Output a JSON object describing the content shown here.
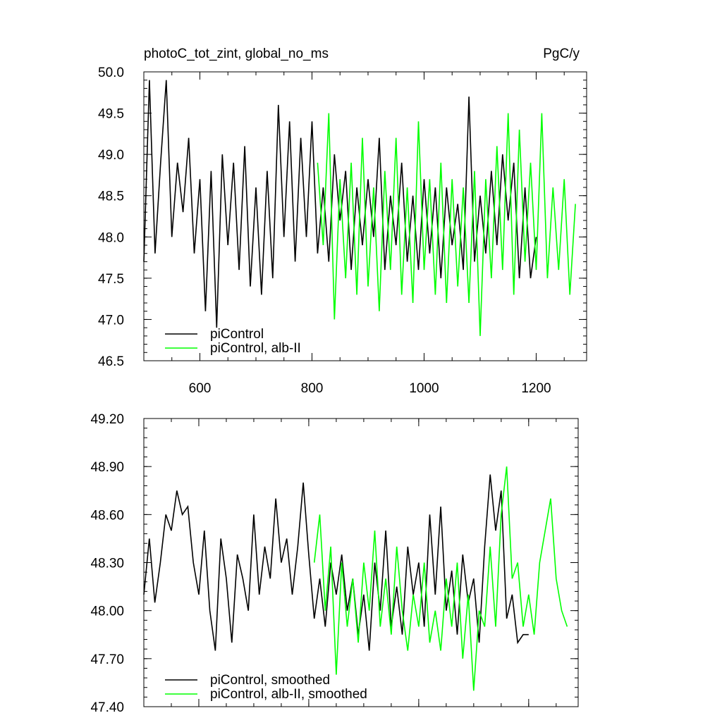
{
  "chart_data": [
    {
      "type": "line",
      "title": "photoC_tot_zint, global_no_ms",
      "subtitle": "PgC/y",
      "xlim": [
        500,
        1290
      ],
      "xticks": [
        600,
        800,
        1000,
        1200
      ],
      "show_xtick_labels": true,
      "ylim": [
        46.5,
        50.0
      ],
      "yticks": [
        {
          "value": 46.5,
          "label": "46.5"
        },
        {
          "value": 47,
          "label": "47.0"
        },
        47.5,
        {
          "value": 48,
          "label": "48.0"
        },
        48.5,
        {
          "value": 49,
          "label": "49.0"
        },
        49.5,
        {
          "value": 50,
          "label": "50.0"
        }
      ],
      "legend": "lower left",
      "series": [
        {
          "name": "piControl",
          "color": "#000000",
          "x": [
            500,
            510,
            520,
            530,
            540,
            550,
            560,
            570,
            580,
            590,
            600,
            610,
            620,
            630,
            640,
            650,
            660,
            670,
            680,
            690,
            700,
            710,
            720,
            730,
            740,
            750,
            760,
            770,
            780,
            790,
            800,
            810,
            820,
            830,
            840,
            850,
            860,
            870,
            880,
            890,
            900,
            910,
            920,
            930,
            940,
            950,
            960,
            970,
            980,
            990,
            1000,
            1010,
            1020,
            1030,
            1040,
            1050,
            1060,
            1070,
            1080,
            1090,
            1100,
            1110,
            1120,
            1130,
            1140,
            1150,
            1160,
            1170,
            1180,
            1190,
            1200
          ],
          "values": [
            47.7,
            49.9,
            47.8,
            48.9,
            49.9,
            48.0,
            48.9,
            48.3,
            49.2,
            47.8,
            48.7,
            47.1,
            48.8,
            46.9,
            49.0,
            47.9,
            48.9,
            47.6,
            49.1,
            47.4,
            48.6,
            47.3,
            48.8,
            47.5,
            49.6,
            48.0,
            49.4,
            47.7,
            49.2,
            48.0,
            49.4,
            47.8,
            48.6,
            47.7,
            49.0,
            48.2,
            48.8,
            47.6,
            48.6,
            47.9,
            48.7,
            48.0,
            49.2,
            47.6,
            48.5,
            47.9,
            48.9,
            47.7,
            48.5,
            47.6,
            48.7,
            47.8,
            48.6,
            47.5,
            48.6,
            47.9,
            48.4,
            47.6,
            49.7,
            47.7,
            48.5,
            47.8,
            48.8,
            47.9,
            49.0,
            48.2,
            48.9,
            47.5,
            48.6,
            47.5,
            48.0
          ]
        },
        {
          "name": "piControl, alb-II",
          "color": "#00ff00",
          "x": [
            810,
            820,
            830,
            840,
            850,
            860,
            870,
            880,
            890,
            900,
            910,
            920,
            930,
            940,
            950,
            960,
            970,
            980,
            990,
            1000,
            1010,
            1020,
            1030,
            1040,
            1050,
            1060,
            1070,
            1080,
            1090,
            1100,
            1110,
            1120,
            1130,
            1140,
            1150,
            1160,
            1170,
            1180,
            1190,
            1200,
            1210,
            1220,
            1230,
            1240,
            1250,
            1260,
            1270
          ],
          "values": [
            48.9,
            47.9,
            49.5,
            47.0,
            48.7,
            47.5,
            48.9,
            47.3,
            49.2,
            47.4,
            48.6,
            47.1,
            48.8,
            47.6,
            49.2,
            47.3,
            48.6,
            47.2,
            49.4,
            47.6,
            48.7,
            47.3,
            48.9,
            47.2,
            48.7,
            47.4,
            48.6,
            47.2,
            48.8,
            46.8,
            48.7,
            47.5,
            49.1,
            47.6,
            49.5,
            47.3,
            49.3,
            47.7,
            48.9,
            47.6,
            49.5,
            47.5,
            48.6,
            47.6,
            48.7,
            47.3,
            48.4
          ]
        }
      ]
    },
    {
      "type": "line",
      "xlim": [
        500,
        1290
      ],
      "xticks": [
        600,
        800,
        1000,
        1200
      ],
      "show_xtick_labels": false,
      "ylim": [
        47.4,
        49.2
      ],
      "yticks": [
        {
          "value": 47.4,
          "label": "47.40"
        },
        {
          "value": 47.7,
          "label": "47.70"
        },
        {
          "value": 48,
          "label": "48.00"
        },
        {
          "value": 48.3,
          "label": "48.30"
        },
        {
          "value": 48.6,
          "label": "48.60"
        },
        {
          "value": 48.9,
          "label": "48.90"
        },
        {
          "value": 49.2,
          "label": "49.20"
        }
      ],
      "legend": "lower left",
      "series": [
        {
          "name": "piControl, smoothed",
          "color": "#000000",
          "x": [
            500,
            510,
            520,
            530,
            540,
            550,
            560,
            570,
            580,
            590,
            600,
            610,
            620,
            630,
            640,
            650,
            660,
            670,
            680,
            690,
            700,
            710,
            720,
            730,
            740,
            750,
            760,
            770,
            780,
            790,
            800,
            810,
            820,
            830,
            840,
            850,
            860,
            870,
            880,
            890,
            900,
            910,
            920,
            930,
            940,
            950,
            960,
            970,
            980,
            990,
            1000,
            1010,
            1020,
            1030,
            1040,
            1050,
            1060,
            1070,
            1080,
            1090,
            1100,
            1110,
            1120,
            1130,
            1140,
            1150,
            1160,
            1170,
            1180,
            1190,
            1200
          ],
          "values": [
            48.1,
            48.45,
            48.05,
            48.3,
            48.6,
            48.5,
            48.75,
            48.6,
            48.65,
            48.3,
            48.1,
            48.5,
            48.0,
            47.75,
            48.45,
            48.2,
            47.8,
            48.35,
            48.2,
            48.0,
            48.6,
            48.1,
            48.4,
            48.2,
            48.7,
            48.3,
            48.45,
            48.1,
            48.4,
            48.8,
            48.35,
            47.95,
            48.2,
            47.9,
            48.3,
            48.1,
            48.35,
            48.0,
            48.2,
            47.85,
            48.1,
            47.75,
            48.3,
            48.0,
            48.5,
            47.9,
            48.15,
            47.85,
            48.4,
            48.1,
            48.3,
            47.9,
            48.6,
            48.1,
            48.65,
            48.0,
            48.25,
            47.85,
            48.35,
            48.05,
            48.2,
            47.8,
            48.4,
            48.85,
            48.5,
            48.75,
            47.95,
            48.1,
            47.8,
            47.85,
            47.85
          ]
        },
        {
          "name": "piControl, alb-II, smoothed",
          "color": "#00ff00",
          "x": [
            810,
            820,
            830,
            840,
            850,
            860,
            870,
            880,
            890,
            900,
            910,
            920,
            930,
            940,
            950,
            960,
            970,
            980,
            990,
            1000,
            1010,
            1020,
            1030,
            1040,
            1050,
            1060,
            1070,
            1080,
            1090,
            1100,
            1110,
            1120,
            1130,
            1140,
            1150,
            1160,
            1170,
            1180,
            1190,
            1200,
            1210,
            1220,
            1230,
            1240,
            1250,
            1260,
            1270
          ],
          "values": [
            48.3,
            48.6,
            48.0,
            48.4,
            47.6,
            48.3,
            47.9,
            48.2,
            47.8,
            48.3,
            48.0,
            48.5,
            47.9,
            48.2,
            47.85,
            48.4,
            48.0,
            47.75,
            48.1,
            47.9,
            48.3,
            47.8,
            48.0,
            47.75,
            48.2,
            47.9,
            48.3,
            47.7,
            48.1,
            47.5,
            48.0,
            47.9,
            48.4,
            47.9,
            48.6,
            48.9,
            48.2,
            48.3,
            47.9,
            48.1,
            47.85,
            48.3,
            48.5,
            48.7,
            48.2,
            48.0,
            47.9
          ]
        }
      ]
    }
  ]
}
